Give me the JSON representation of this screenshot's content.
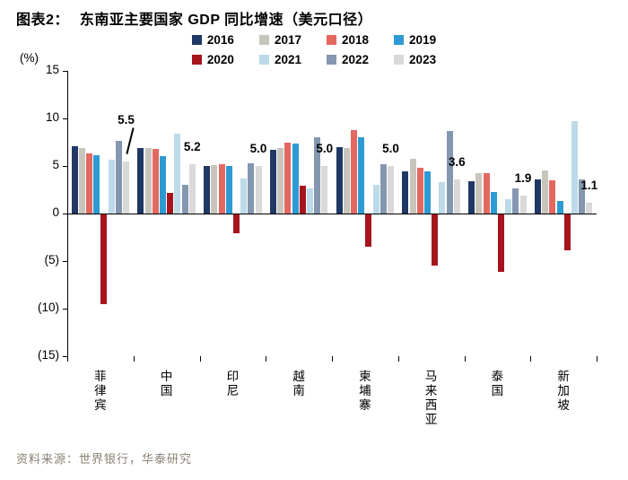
{
  "header": {
    "figure_label": "图表2："
  },
  "source": "资料来源：世界银行，华泰研究",
  "chart_data": {
    "type": "bar",
    "title": "东南亚主要国家 GDP 同比增速（美元口径）",
    "unit_label": "(%)",
    "ylim": [
      -15,
      15
    ],
    "grid": false,
    "legend_position": "top",
    "yticks": [
      {
        "v": 15,
        "label": "15"
      },
      {
        "v": 10,
        "label": "10"
      },
      {
        "v": 5,
        "label": "5"
      },
      {
        "v": 0,
        "label": "0"
      },
      {
        "v": -5,
        "label": "(5)"
      },
      {
        "v": -10,
        "label": "(10)"
      },
      {
        "v": -15,
        "label": "(15)"
      }
    ],
    "legend_rows": [
      [
        "2016",
        "2017",
        "2018",
        "2019"
      ],
      [
        "2020",
        "2021",
        "2022",
        "2023"
      ]
    ],
    "categories": [
      "菲律宾",
      "中国",
      "印尼",
      "越南",
      "柬埔寨",
      "马来西亚",
      "泰国",
      "新加坡"
    ],
    "category_slugs": [
      "philippines",
      "china",
      "indonesia",
      "vietnam",
      "cambodia",
      "malaysia",
      "thailand",
      "singapore"
    ],
    "series": [
      {
        "name": "2016",
        "color": "#1F3864",
        "values": [
          7.1,
          6.9,
          5.0,
          6.7,
          7.0,
          4.4,
          3.4,
          3.6
        ]
      },
      {
        "name": "2017",
        "color": "#C8C5BD",
        "values": [
          6.9,
          6.9,
          5.1,
          6.9,
          6.9,
          5.8,
          4.2,
          4.5
        ]
      },
      {
        "name": "2018",
        "color": "#E3685F",
        "values": [
          6.3,
          6.8,
          5.2,
          7.5,
          8.8,
          4.8,
          4.2,
          3.5
        ]
      },
      {
        "name": "2019",
        "color": "#2D9BD3",
        "values": [
          6.1,
          6.0,
          5.0,
          7.4,
          8.0,
          4.4,
          2.3,
          1.3
        ]
      },
      {
        "name": "2020",
        "color": "#A6151D",
        "values": [
          -9.5,
          2.2,
          -2.1,
          2.9,
          -3.5,
          -5.5,
          -6.1,
          -3.9
        ]
      },
      {
        "name": "2021",
        "color": "#BCDAE8",
        "values": [
          5.7,
          8.4,
          3.7,
          2.6,
          3.0,
          3.3,
          1.5,
          9.7
        ]
      },
      {
        "name": "2022",
        "color": "#8497B0",
        "values": [
          7.6,
          3.0,
          5.3,
          8.0,
          5.2,
          8.7,
          2.6,
          3.6
        ]
      },
      {
        "name": "2023",
        "color": "#D9D9D9",
        "values": [
          5.5,
          5.2,
          5.0,
          5.0,
          5.0,
          3.6,
          1.9,
          1.1
        ]
      }
    ],
    "data_labels": {
      "year": "2023",
      "values": [
        "5.5",
        "5.2",
        "5.0",
        "5.0",
        "5.0",
        "3.6",
        "1.9",
        "1.1"
      ],
      "callout_index": 0
    }
  }
}
